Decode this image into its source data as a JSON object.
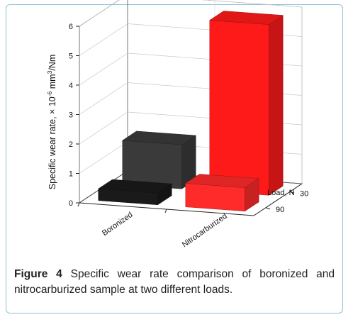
{
  "chart_data": {
    "type": "bar",
    "subtype": "3d-bar",
    "categories": [
      "Boronized",
      "Nitrocarburized"
    ],
    "loads": [
      "30",
      "90"
    ],
    "load_axis_label": "Load, N",
    "ylabel_main": "Specific wear rate, × 10",
    "ylabel_exp": "-6",
    "ylabel_unit": " mm",
    "ylabel_unit_exp": "3",
    "ylabel_tail": "/Nm",
    "ylim": [
      0,
      6
    ],
    "yticks": [
      "0",
      "1",
      "2",
      "3",
      "4",
      "5",
      "6"
    ],
    "grid": true,
    "series": [
      {
        "name": "30",
        "values": [
          1.5,
          5.8
        ]
      },
      {
        "name": "90",
        "values": [
          0.4,
          0.8
        ]
      }
    ],
    "colors": {
      "Boronized": {
        "30": "#3a3a3a",
        "90": "#1a1a1a"
      },
      "Nitrocarburized": {
        "30": "#ff1a1a",
        "90": "#ff2a2a"
      }
    }
  },
  "caption": {
    "label": "Figure 4",
    "text": "Specific wear rate comparison of boronized and nitrocarburized sample at two different loads."
  }
}
